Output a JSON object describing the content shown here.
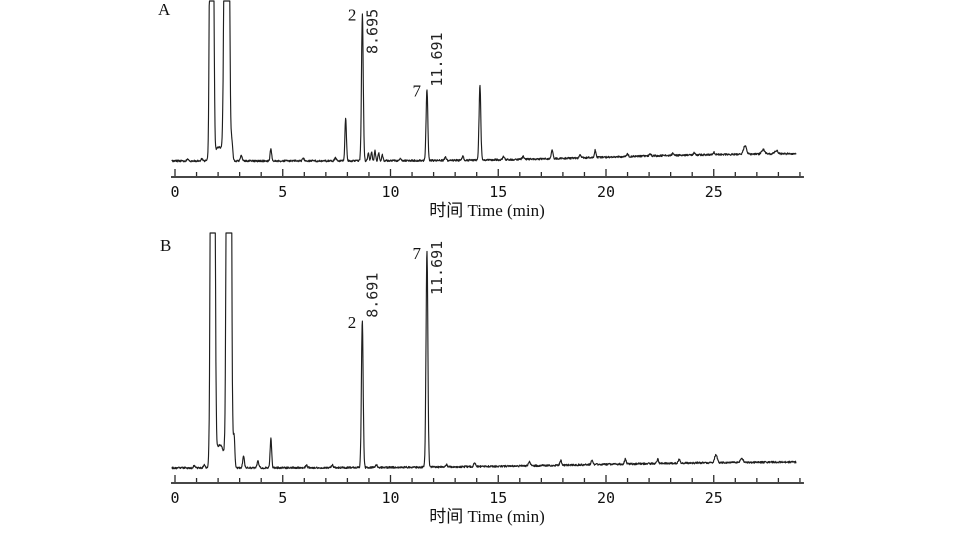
{
  "figure": {
    "background": "#ffffff",
    "trace_color": "#1f1f1f",
    "axis_color": "#2b2b2b",
    "x_axis_label": "时间 Time (min)",
    "x_ticks_labeled": [
      0,
      5,
      10,
      15,
      20,
      25
    ],
    "x_minor_tick_step": 1,
    "x_axis_end": 29
  },
  "chart_data": [
    {
      "type": "line",
      "panel_label": "A",
      "xlabel": "时间 Time (min)",
      "x_range": [
        0,
        28.8
      ],
      "grid": false,
      "y_axis_shown": false,
      "labeled_peaks": [
        {
          "label": "2",
          "rt_min": 8.695,
          "rt_text": "8.695",
          "rel_height": 0.97
        },
        {
          "label": "7",
          "rt_min": 11.691,
          "rt_text": "11.691",
          "rel_height": 0.47
        }
      ],
      "baseline_drift": {
        "amount": 0.05,
        "center": 20,
        "width": 3
      },
      "noise": 0.012,
      "peaks": [
        {
          "t": 0.6,
          "h": 0.012
        },
        {
          "t": 1.25,
          "h": 0.015
        },
        {
          "t": 1.7,
          "h": 9,
          "w": 0.055,
          "offscale": true
        },
        {
          "t": 2.05,
          "h": 0.09,
          "w": 0.22
        },
        {
          "t": 2.4,
          "h": 9,
          "w": 0.07,
          "offscale": true
        },
        {
          "t": 2.64,
          "h": 0.12,
          "w": 0.04
        },
        {
          "t": 3.08,
          "h": 0.035
        },
        {
          "t": 4.45,
          "h": 0.085,
          "w": 0.035
        },
        {
          "t": 5.95,
          "h": 0.018
        },
        {
          "t": 7.45,
          "h": 0.02
        },
        {
          "t": 7.92,
          "h": 0.28,
          "w": 0.035
        },
        {
          "t": 8.695,
          "h": 0.97,
          "w": 0.04,
          "label": "2",
          "rt_text": "8.695"
        },
        {
          "t": 8.97,
          "h": 0.05,
          "w": 0.03
        },
        {
          "t": 9.12,
          "h": 0.06,
          "w": 0.03
        },
        {
          "t": 9.28,
          "h": 0.065,
          "w": 0.03
        },
        {
          "t": 9.45,
          "h": 0.05,
          "w": 0.03
        },
        {
          "t": 9.62,
          "h": 0.04,
          "w": 0.03
        },
        {
          "t": 10.45,
          "h": 0.015
        },
        {
          "t": 11.691,
          "h": 0.47,
          "w": 0.04,
          "label": "7",
          "rt_text": "11.691"
        },
        {
          "t": 12.55,
          "h": 0.02
        },
        {
          "t": 13.35,
          "h": 0.025
        },
        {
          "t": 14.15,
          "h": 0.49,
          "w": 0.04
        },
        {
          "t": 15.25,
          "h": 0.02
        },
        {
          "t": 16.15,
          "h": 0.02
        },
        {
          "t": 17.5,
          "h": 0.06,
          "w": 0.04
        },
        {
          "t": 18.8,
          "h": 0.02
        },
        {
          "t": 19.5,
          "h": 0.05,
          "w": 0.035
        },
        {
          "t": 21.0,
          "h": 0.015
        },
        {
          "t": 22.05,
          "h": 0.013
        },
        {
          "t": 23.1,
          "h": 0.013
        },
        {
          "t": 24.1,
          "h": 0.015
        },
        {
          "t": 25.0,
          "h": 0.015
        },
        {
          "t": 26.45,
          "h": 0.055,
          "w": 0.07
        },
        {
          "t": 27.3,
          "h": 0.028,
          "w": 0.07
        },
        {
          "t": 27.9,
          "h": 0.022,
          "w": 0.08
        }
      ]
    },
    {
      "type": "line",
      "panel_label": "B",
      "xlabel": "时间 Time (min)",
      "x_range": [
        0,
        28.8
      ],
      "grid": false,
      "y_axis_shown": false,
      "labeled_peaks": [
        {
          "label": "2",
          "rt_min": 8.691,
          "rt_text": "8.691",
          "rel_height": 0.64
        },
        {
          "label": "7",
          "rt_min": 11.691,
          "rt_text": "11.691",
          "rel_height": 0.94
        }
      ],
      "baseline_drift": {
        "amount": 0.028,
        "center": 19,
        "width": 4
      },
      "noise": 0.008,
      "peaks": [
        {
          "t": 0.9,
          "h": 0.01
        },
        {
          "t": 1.35,
          "h": 0.012
        },
        {
          "t": 1.75,
          "h": 9,
          "w": 0.06,
          "offscale": true
        },
        {
          "t": 2.08,
          "h": 0.1,
          "w": 0.2
        },
        {
          "t": 2.5,
          "h": 9,
          "w": 0.065,
          "offscale": true
        },
        {
          "t": 2.74,
          "h": 0.14,
          "w": 0.035
        },
        {
          "t": 3.18,
          "h": 0.05
        },
        {
          "t": 3.85,
          "h": 0.028
        },
        {
          "t": 4.45,
          "h": 0.13,
          "w": 0.035
        },
        {
          "t": 6.1,
          "h": 0.012
        },
        {
          "t": 7.3,
          "h": 0.012
        },
        {
          "t": 8.691,
          "h": 0.64,
          "w": 0.04,
          "label": "2",
          "rt_text": "8.691"
        },
        {
          "t": 9.35,
          "h": 0.012
        },
        {
          "t": 11.691,
          "h": 0.94,
          "w": 0.042,
          "label": "7",
          "rt_text": "11.691"
        },
        {
          "t": 12.6,
          "h": 0.01
        },
        {
          "t": 13.9,
          "h": 0.018
        },
        {
          "t": 16.45,
          "h": 0.02
        },
        {
          "t": 17.9,
          "h": 0.02
        },
        {
          "t": 19.35,
          "h": 0.022
        },
        {
          "t": 20.9,
          "h": 0.022
        },
        {
          "t": 22.4,
          "h": 0.018
        },
        {
          "t": 23.4,
          "h": 0.018
        },
        {
          "t": 25.1,
          "h": 0.035,
          "w": 0.06
        },
        {
          "t": 26.3,
          "h": 0.02,
          "w": 0.06
        }
      ]
    }
  ]
}
